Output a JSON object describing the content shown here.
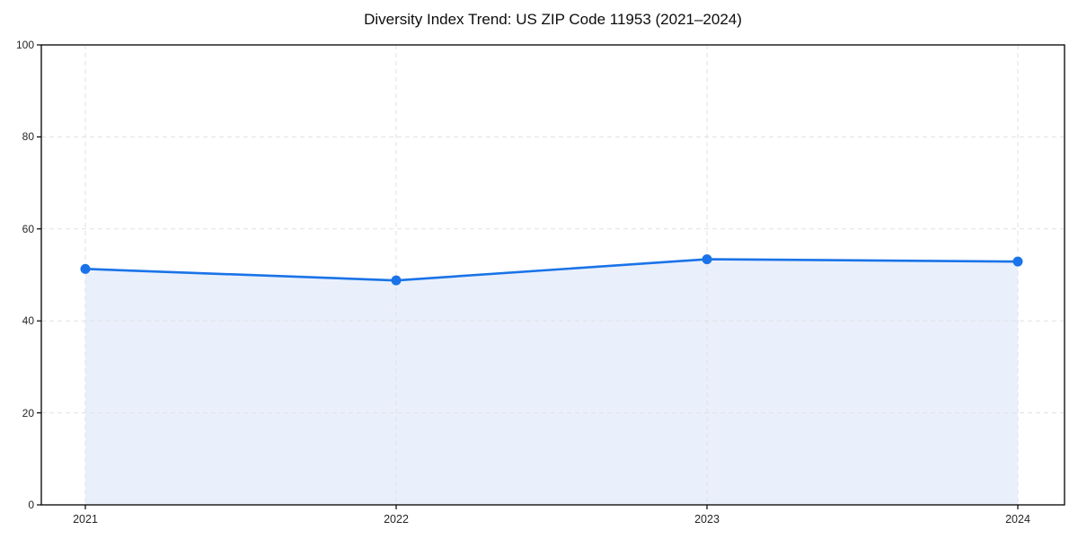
{
  "chart_data": {
    "type": "area",
    "title": "Diversity Index Trend: US ZIP Code 11953 (2021–2024)",
    "x": [
      "2021",
      "2022",
      "2023",
      "2024"
    ],
    "series": [
      {
        "name": "Diversity Index",
        "values": [
          51.3,
          48.8,
          53.4,
          52.9
        ]
      }
    ],
    "xlabel": "",
    "ylabel": "",
    "ylim": [
      0,
      100
    ],
    "yticks": [
      0,
      20,
      40,
      60,
      80,
      100
    ],
    "grid": true,
    "grid_style": "dashed",
    "legend": "none",
    "line_color": "#1a73e8",
    "marker_color": "#1a73e8",
    "fill_color": "#e9f0fc",
    "grid_color": "#e1e1e1",
    "axis_color": "#000000",
    "tick_label_color": "#262626",
    "title_color": "#0d0d0d"
  }
}
